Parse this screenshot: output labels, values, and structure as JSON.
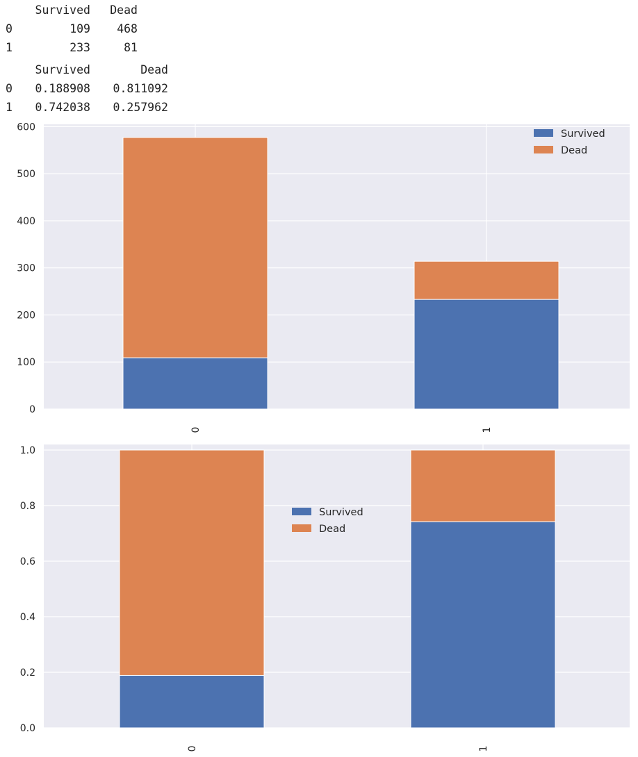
{
  "tables": [
    {
      "columns": [
        "Survived",
        "Dead"
      ],
      "rows": [
        {
          "index": "0",
          "cells": [
            "109",
            "468"
          ]
        },
        {
          "index": "1",
          "cells": [
            "233",
            "81"
          ]
        }
      ]
    },
    {
      "columns": [
        "Survived",
        "Dead"
      ],
      "rows": [
        {
          "index": "0",
          "cells": [
            "0.188908",
            "0.811092"
          ]
        },
        {
          "index": "1",
          "cells": [
            "0.742038",
            "0.257962"
          ]
        }
      ]
    }
  ],
  "chart_data": [
    {
      "type": "bar",
      "stacked": true,
      "categories": [
        "0",
        "1"
      ],
      "series": [
        {
          "name": "Survived",
          "values": [
            109,
            233
          ],
          "color": "#4c72b0"
        },
        {
          "name": "Dead",
          "values": [
            468,
            81
          ],
          "color": "#dd8452"
        }
      ],
      "ylim": [
        0,
        605
      ],
      "yticks": [
        0,
        100,
        200,
        300,
        400,
        500,
        600
      ],
      "ytick_labels": [
        "0",
        "100",
        "200",
        "300",
        "400",
        "500",
        "600"
      ],
      "title": "",
      "xlabel": "",
      "ylabel": "",
      "legend": "upper right",
      "grid": true,
      "background": "#eaeaf2"
    },
    {
      "type": "bar",
      "stacked": true,
      "categories": [
        "0",
        "1"
      ],
      "series": [
        {
          "name": "Survived",
          "values": [
            0.188908,
            0.742038
          ],
          "color": "#4c72b0"
        },
        {
          "name": "Dead",
          "values": [
            0.811092,
            0.257962
          ],
          "color": "#dd8452"
        }
      ],
      "ylim": [
        0,
        1.02
      ],
      "yticks": [
        0,
        0.2,
        0.4,
        0.6,
        0.8,
        1.0
      ],
      "ytick_labels": [
        "0.0",
        "0.2",
        "0.4",
        "0.6",
        "0.8",
        "1.0"
      ],
      "title": "",
      "xlabel": "",
      "ylabel": "",
      "legend": "lower center",
      "grid": true,
      "background": "#eaeaf2"
    }
  ]
}
